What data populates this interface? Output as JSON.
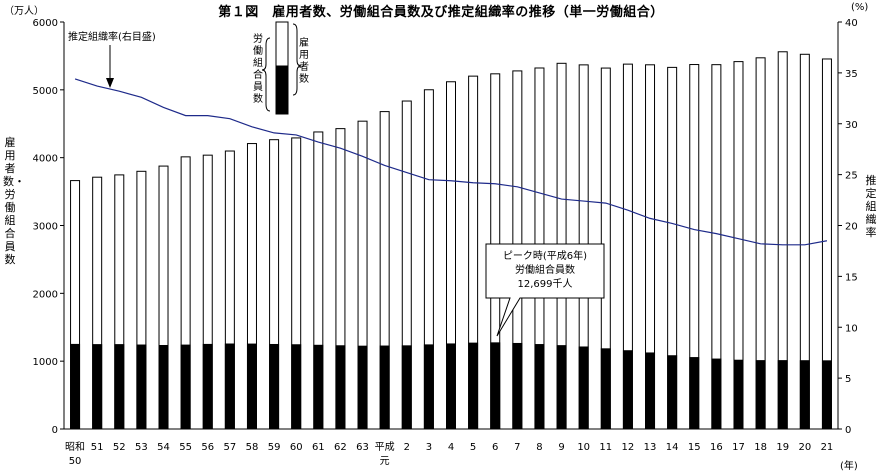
{
  "chart_data": {
    "type": "bar",
    "title": "第１図　雇用者数、労働組合員数及び推定組織率の推移（単一労働組合）",
    "left_unit": "（万人）",
    "right_unit": "(%)",
    "x_unit": "(年)",
    "left_axis_label": "雇用者数・労働組合員数",
    "right_axis_label": "推定組織率",
    "ylim_left": [
      0,
      6000
    ],
    "ylim_right": [
      0,
      40
    ],
    "left_ticks": [
      "0",
      "1000",
      "2000",
      "3000",
      "4000",
      "5000",
      "6000"
    ],
    "right_ticks": [
      "0",
      "5",
      "10",
      "15",
      "20",
      "25",
      "30",
      "35",
      "40"
    ],
    "categories": [
      [
        "昭和",
        "50"
      ],
      [
        "51"
      ],
      [
        "52"
      ],
      [
        "53"
      ],
      [
        "54"
      ],
      [
        "55"
      ],
      [
        "56"
      ],
      [
        "57"
      ],
      [
        "58"
      ],
      [
        "59"
      ],
      [
        "60"
      ],
      [
        "61"
      ],
      [
        "62"
      ],
      [
        "63"
      ],
      [
        "平成",
        "元"
      ],
      [
        "2"
      ],
      [
        "3"
      ],
      [
        "4"
      ],
      [
        "5"
      ],
      [
        "6"
      ],
      [
        "7"
      ],
      [
        "8"
      ],
      [
        "9"
      ],
      [
        "10"
      ],
      [
        "11"
      ],
      [
        "12"
      ],
      [
        "13"
      ],
      [
        "14"
      ],
      [
        "15"
      ],
      [
        "16"
      ],
      [
        "17"
      ],
      [
        "18"
      ],
      [
        "19"
      ],
      [
        "20"
      ],
      [
        "21"
      ]
    ],
    "series": [
      {
        "name": "雇用者数",
        "axis": "left",
        "values": [
          3662,
          3712,
          3746,
          3799,
          3876,
          4012,
          4037,
          4098,
          4208,
          4265,
          4291,
          4379,
          4428,
          4538,
          4679,
          4835,
          5001,
          5119,
          5202,
          5236,
          5279,
          5322,
          5391,
          5368,
          5321,
          5379,
          5369,
          5331,
          5373,
          5371,
          5416,
          5472,
          5561,
          5524,
          5455
        ]
      },
      {
        "name": "労働組合員数",
        "axis": "left",
        "values": [
          1247,
          1244,
          1244,
          1238,
          1231,
          1237,
          1247,
          1253,
          1252,
          1246,
          1242,
          1234,
          1227,
          1221,
          1223,
          1226,
          1240,
          1254,
          1266,
          1270,
          1261,
          1245,
          1229,
          1209,
          1182,
          1154,
          1121,
          1080,
          1053,
          1031,
          1014,
          1008,
          1008,
          1007,
          1005
        ]
      },
      {
        "name": "推定組織率",
        "axis": "right",
        "values": [
          34.4,
          33.7,
          33.2,
          32.6,
          31.6,
          30.8,
          30.8,
          30.5,
          29.7,
          29.1,
          28.9,
          28.2,
          27.6,
          26.8,
          25.9,
          25.2,
          24.5,
          24.4,
          24.2,
          24.1,
          23.8,
          23.2,
          22.6,
          22.4,
          22.2,
          21.5,
          20.7,
          20.2,
          19.6,
          19.2,
          18.7,
          18.2,
          18.1,
          18.1,
          18.5
        ]
      }
    ],
    "annotations": {
      "rate_label": "推定組織率(右目盛)",
      "peak_lines": [
        "ピーク時(平成6年)",
        "労働組合員数",
        "12,699千人"
      ],
      "legend_union": "労働組合員数",
      "legend_employee": "雇用者数"
    }
  }
}
